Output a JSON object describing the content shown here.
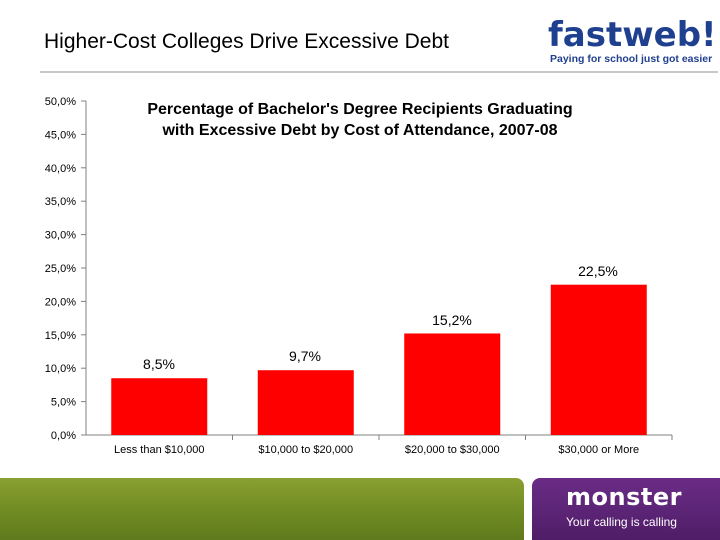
{
  "slide": {
    "title": "Higher-Cost Colleges Drive Excessive Debt"
  },
  "logos": {
    "fastweb_name": "fastweb!",
    "fastweb_tagline": "Paying for school just got easier",
    "monster_name": "monster",
    "monster_tagline": "Your calling is calling"
  },
  "colors": {
    "bar": "#ff0000",
    "fastweb_blue": "#1f3f8f",
    "fastweb_orange": "#e87722",
    "monster_purple": "#5a2378",
    "footer_green": "#7a9428"
  },
  "chart_data": {
    "type": "bar",
    "title": "Percentage of Bachelor's Degree Recipients Graduating with Excessive Debt by Cost of Attendance, 2007-08",
    "title_lines": [
      "Percentage of Bachelor's Degree Recipients Graduating",
      "with Excessive Debt by Cost of Attendance, 2007-08"
    ],
    "categories": [
      "Less than $10,000",
      "$10,000 to $20,000",
      "$20,000 to $30,000",
      "$30,000 or More"
    ],
    "values": [
      8.5,
      9.7,
      15.2,
      22.5
    ],
    "data_labels": [
      "8,5%",
      "9,7%",
      "15,2%",
      "22,5%"
    ],
    "ylim": [
      0,
      50
    ],
    "yticks": [
      0,
      5,
      10,
      15,
      20,
      25,
      30,
      35,
      40,
      45,
      50
    ],
    "ytick_labels": [
      "0,0%",
      "5,0%",
      "10,0%",
      "15,0%",
      "20,0%",
      "25,0%",
      "30,0%",
      "35,0%",
      "40,0%",
      "45,0%",
      "50,0%"
    ],
    "xlabel": "",
    "ylabel": "",
    "grid": false,
    "legend": "none"
  }
}
